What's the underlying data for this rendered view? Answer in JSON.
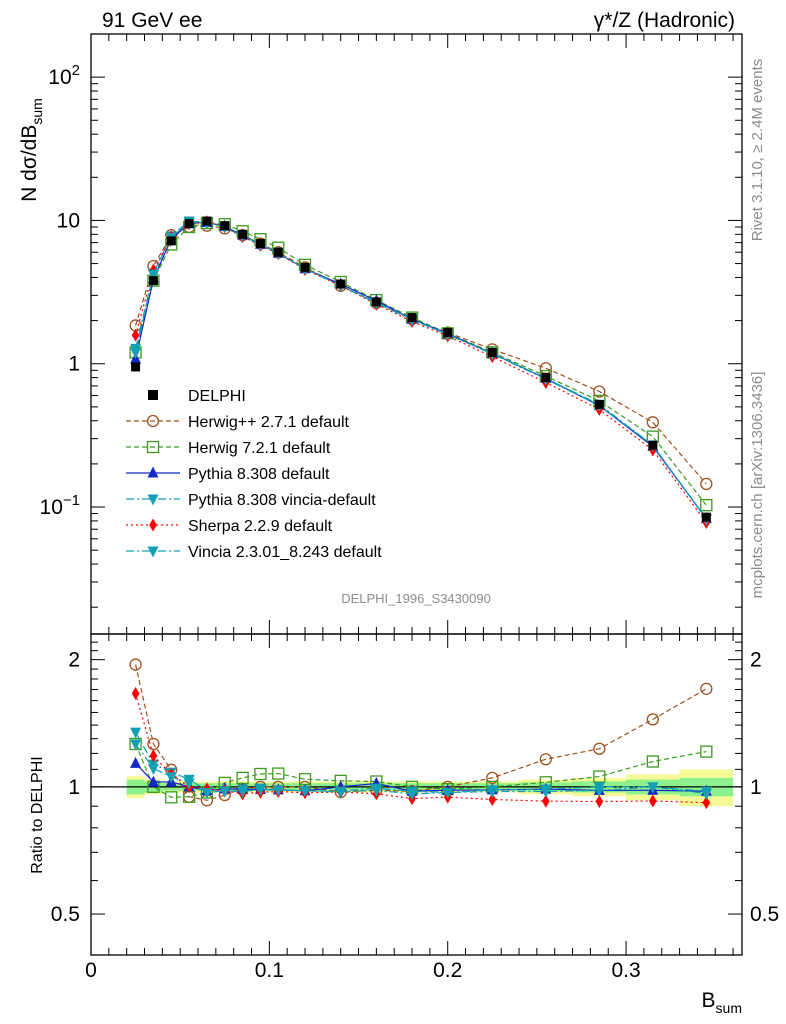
{
  "header": {
    "left": "91 GeV ee",
    "right": "γ*/Z (Hadronic)"
  },
  "side_labels": {
    "rivet": "Rivet 3.1.10, ≥ 2.4M events",
    "mcplots": "mcplots.cern.ch [arXiv:1306.3436]"
  },
  "watermark": "DELPHI_1996_S3430090",
  "colors": {
    "data": "#000000",
    "herwigpp": "#a0501e",
    "herwig7": "#3c9b1e",
    "pythia": "#1428c8",
    "pythia_vincia": "#14a0b4",
    "sherpa": "#ff0000",
    "vincia": "#14a0b4",
    "band_inner": "#8cf08c",
    "band_outer": "#f5fa96"
  },
  "chart_data": {
    "type": "line",
    "xlabel": "B",
    "xlabel_sub": "sum",
    "ylabel_main": "N dσ/dB",
    "ylabel_main_sub": "sum",
    "ylabel_ratio": "Ratio to DELPHI",
    "xlim": [
      0,
      0.365
    ],
    "ylim_main": [
      0.013,
      200
    ],
    "ylim_ratio": [
      0.4,
      2.3
    ],
    "yscale": "log",
    "x_ticks": [
      "0",
      "0.1",
      "0.2",
      "0.3"
    ],
    "main_y_ticks": [
      "10^-1",
      "1",
      "10",
      "10^2"
    ],
    "ratio_y_ticks": [
      "0.5",
      "1",
      "2"
    ],
    "legend_placement": "middle-left",
    "x": [
      0.025,
      0.035,
      0.045,
      0.055,
      0.065,
      0.075,
      0.085,
      0.095,
      0.105,
      0.12,
      0.14,
      0.16,
      0.18,
      0.2,
      0.225,
      0.255,
      0.285,
      0.315,
      0.345
    ],
    "data_values": [
      0.95,
      3.8,
      7.2,
      9.5,
      9.9,
      9.2,
      8.0,
      6.9,
      6.0,
      4.7,
      3.6,
      2.7,
      2.1,
      1.65,
      1.2,
      0.8,
      0.52,
      0.27,
      0.085
    ],
    "band_inner": [
      0.04,
      0.03,
      0.02,
      0.02,
      0.02,
      0.02,
      0.02,
      0.02,
      0.02,
      0.02,
      0.02,
      0.02,
      0.02,
      0.02,
      0.02,
      0.025,
      0.03,
      0.04,
      0.05
    ],
    "band_outer": [
      0.06,
      0.04,
      0.03,
      0.03,
      0.03,
      0.03,
      0.03,
      0.03,
      0.03,
      0.03,
      0.03,
      0.03,
      0.03,
      0.03,
      0.03,
      0.04,
      0.05,
      0.07,
      0.1
    ],
    "series": [
      {
        "name": "DELPHI",
        "key": "data",
        "style": "data"
      },
      {
        "name": "Herwig++ 2.7.1 default",
        "key": "herwigpp",
        "style": "dashed",
        "marker": "circle-open",
        "values": [
          1.85,
          4.8,
          7.9,
          9.0,
          9.2,
          8.8,
          7.9,
          6.9,
          6.0,
          4.7,
          3.5,
          2.65,
          2.05,
          1.65,
          1.26,
          0.93,
          0.64,
          0.39,
          0.145
        ]
      },
      {
        "name": "Herwig 7.2.1 default",
        "key": "herwig7",
        "style": "dashed",
        "marker": "square-open",
        "values": [
          1.2,
          3.8,
          6.8,
          9.0,
          9.6,
          9.4,
          8.4,
          7.4,
          6.45,
          4.9,
          3.72,
          2.78,
          2.1,
          1.63,
          1.2,
          0.82,
          0.55,
          0.31,
          0.103
        ]
      },
      {
        "name": "Pythia 8.308 default",
        "key": "pythia",
        "style": "solid",
        "marker": "triangle-up",
        "values": [
          1.08,
          3.9,
          7.4,
          9.5,
          9.7,
          9.1,
          7.9,
          6.8,
          5.9,
          4.6,
          3.6,
          2.75,
          2.05,
          1.62,
          1.18,
          0.79,
          0.51,
          0.265,
          0.083
        ]
      },
      {
        "name": "Pythia 8.308 vincia-default",
        "key": "pythia_vincia",
        "style": "dashdot",
        "marker": "triangle-down",
        "values": [
          1.28,
          4.3,
          7.8,
          9.9,
          9.7,
          9.0,
          7.9,
          6.85,
          5.9,
          4.6,
          3.52,
          2.68,
          2.05,
          1.6,
          1.18,
          0.79,
          0.52,
          0.27,
          0.083
        ]
      },
      {
        "name": "Sherpa 2.2.9 default",
        "key": "sherpa",
        "style": "dotted",
        "marker": "diamond",
        "values": [
          1.58,
          4.5,
          7.7,
          9.5,
          9.8,
          9.0,
          7.7,
          6.7,
          5.85,
          4.55,
          3.5,
          2.6,
          1.97,
          1.56,
          1.12,
          0.74,
          0.48,
          0.25,
          0.078
        ]
      },
      {
        "name": "Vincia 2.3.01_8.243 default",
        "key": "vincia",
        "style": "dashdot",
        "marker": "triangle-down",
        "values": [
          1.2,
          4.2,
          7.6,
          9.7,
          9.6,
          9.0,
          7.8,
          6.8,
          5.9,
          4.6,
          3.5,
          2.65,
          2.02,
          1.6,
          1.17,
          0.78,
          0.51,
          0.27,
          0.082
        ]
      }
    ]
  }
}
